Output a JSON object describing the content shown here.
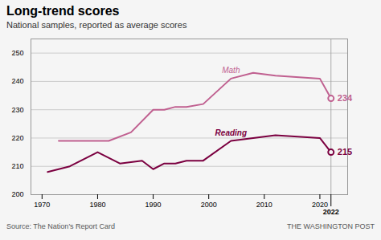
{
  "chart_data": {
    "type": "line",
    "title": "Long-trend scores",
    "subtitle": "National samples, reported as average scores",
    "source": "Source: The Nation's Report Card",
    "attribution": "THE WASHINGTON POST",
    "series": [
      {
        "name": "Math",
        "color": "#c06090",
        "x": [
          1973,
          1978,
          1982,
          1986,
          1990,
          1992,
          1994,
          1996,
          1999,
          2004,
          2008,
          2012,
          2020,
          2022
        ],
        "values": [
          219,
          219,
          219,
          222,
          230,
          230,
          231,
          231,
          232,
          241,
          243,
          242,
          241,
          234
        ],
        "end_value": 234
      },
      {
        "name": "Reading",
        "color": "#7b0040",
        "x": [
          1971,
          1975,
          1980,
          1984,
          1988,
          1990,
          1992,
          1994,
          1996,
          1999,
          2004,
          2008,
          2012,
          2020,
          2022
        ],
        "values": [
          208,
          210,
          215,
          211,
          212,
          209,
          211,
          211,
          212,
          212,
          219,
          220,
          221,
          220,
          215
        ],
        "end_value": 215
      }
    ],
    "xlim": [
      1968,
      2025
    ],
    "xticks": [
      1970,
      1980,
      1990,
      2000,
      2010,
      2020,
      2022
    ],
    "ylim": [
      200,
      255
    ],
    "yticks": [
      200,
      210,
      220,
      230,
      240,
      250
    ],
    "grid": "y"
  }
}
